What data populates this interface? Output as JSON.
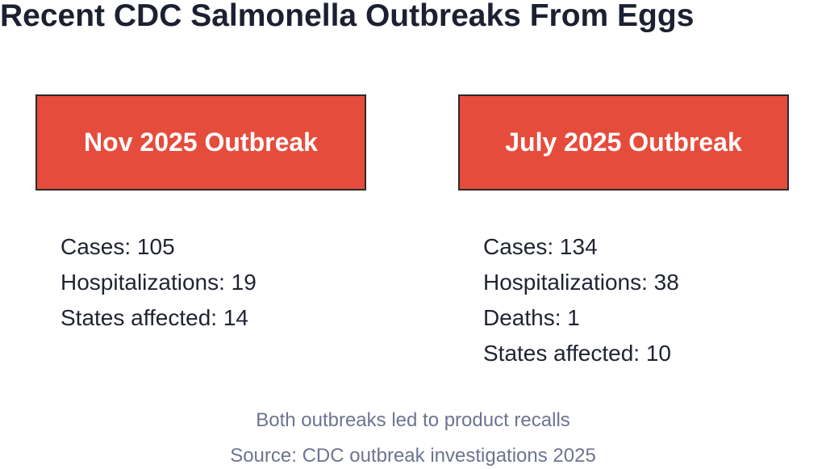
{
  "title": "Recent CDC Salmonella Outbreaks From Eggs",
  "outbreaks": [
    {
      "heading": "Nov 2025 Outbreak",
      "stats": [
        "Cases: 105",
        "Hospitalizations: 19",
        "States affected: 14"
      ]
    },
    {
      "heading": "July 2025 Outbreak",
      "stats": [
        "Cases: 134",
        "Hospitalizations: 38",
        "Deaths: 1",
        "States affected: 10"
      ]
    }
  ],
  "note": "Both outbreaks led to product recalls",
  "source": "Source: CDC outbreak investigations 2025"
}
